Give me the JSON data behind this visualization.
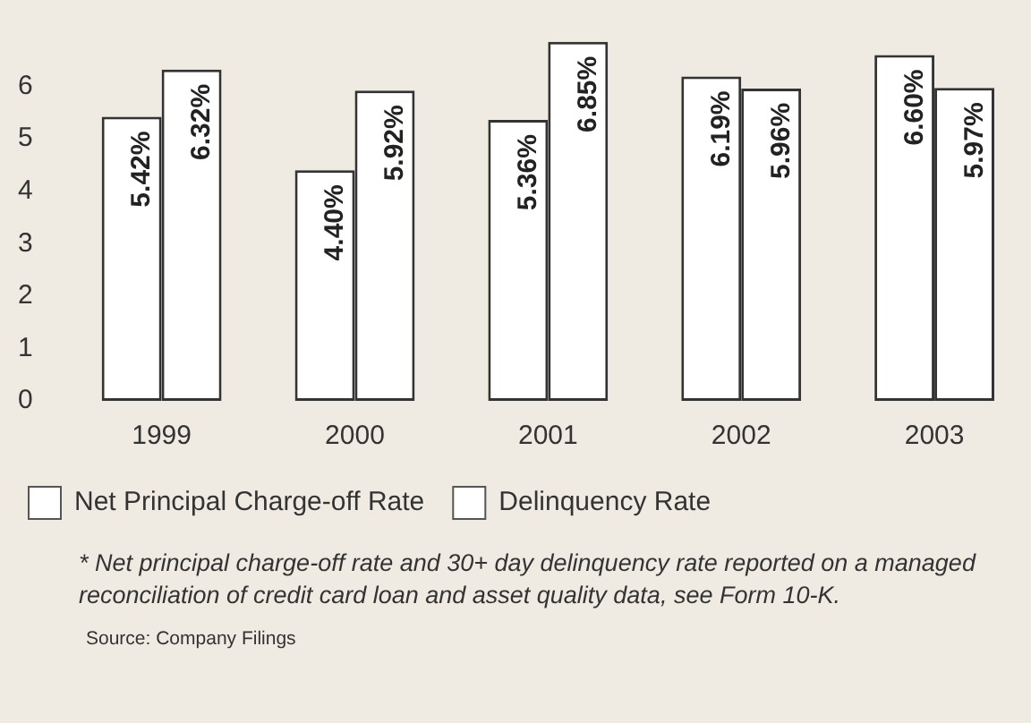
{
  "chart_data": {
    "type": "bar",
    "categories": [
      "1999",
      "2000",
      "2001",
      "2002",
      "2003"
    ],
    "series": [
      {
        "name": "Net Principal Charge-off Rate",
        "color": "#ffffff",
        "values": [
          5.42,
          4.4,
          5.36,
          6.19,
          6.6
        ],
        "value_labels": [
          "5.42%",
          "4.40%",
          "5.36%",
          "6.19%",
          "6.60%"
        ]
      },
      {
        "name": "Delinquency Rate",
        "color": "#ffffff",
        "values": [
          6.32,
          5.92,
          6.85,
          5.96,
          5.97
        ],
        "value_labels": [
          "6.32%",
          "5.92%",
          "6.85%",
          "5.96%",
          "5.97%"
        ]
      }
    ],
    "ylim": [
      0,
      7
    ],
    "yticks": [
      0,
      1,
      2,
      3,
      4,
      5,
      6
    ],
    "grid": false,
    "legend": "bottom",
    "annotations": [
      "* Net principal charge-off rate and 30+ day delinquency rate reported on a managed reconciliation of credit card loan and asset quality data, see Form 10-K.",
      "Source: Company Filings"
    ]
  }
}
